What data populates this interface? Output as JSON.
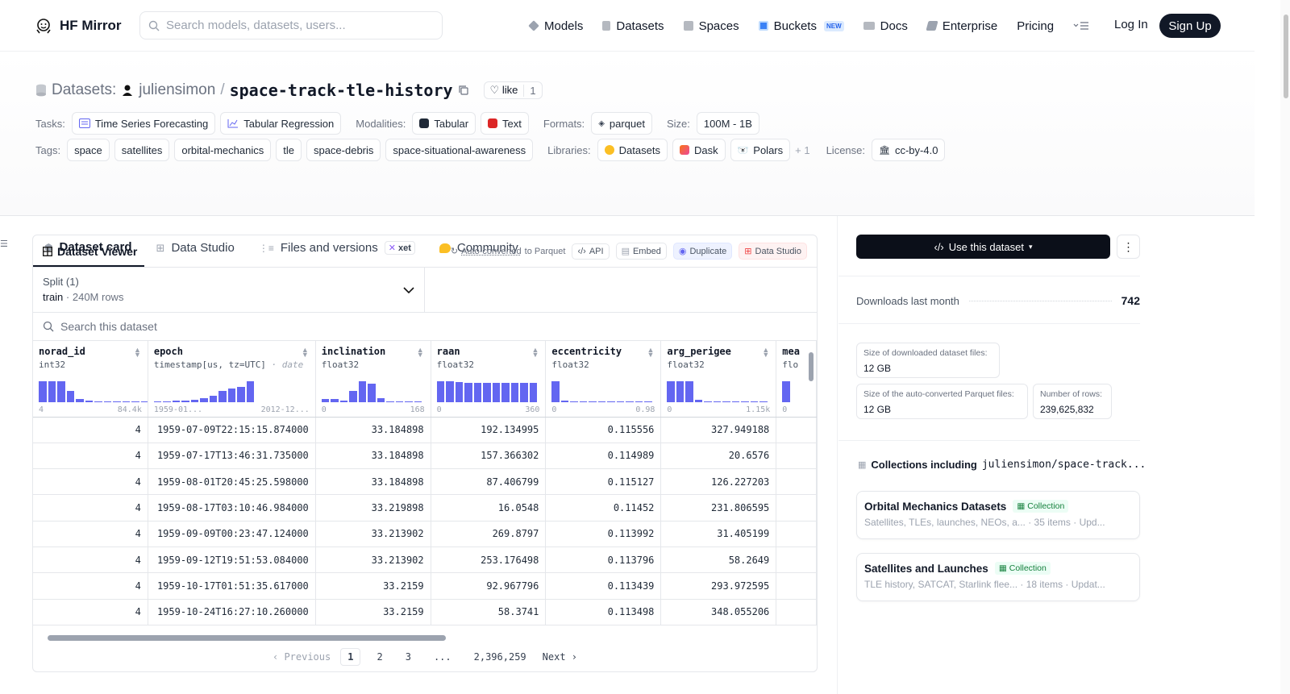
{
  "header": {
    "brand": "HF Mirror",
    "search_placeholder": "Search models, datasets, users...",
    "nav": [
      {
        "label": "Models",
        "icon": "cube-icon",
        "color": "#9ca3af"
      },
      {
        "label": "Datasets",
        "icon": "database-icon",
        "color": "#9ca3af"
      },
      {
        "label": "Spaces",
        "icon": "grid-icon",
        "color": "#9ca3af"
      },
      {
        "label": "Buckets",
        "icon": "bucket-icon",
        "color": "#3b82f6"
      },
      {
        "label": "Docs",
        "icon": "book-icon",
        "color": "#9ca3af"
      },
      {
        "label": "Enterprise",
        "icon": "enterprise-icon",
        "color": "#9ca3af"
      },
      {
        "label": "Pricing",
        "icon": "",
        "color": ""
      }
    ],
    "new_badge": "NEW",
    "login": "Log In",
    "signup": "Sign Up"
  },
  "dataset": {
    "label": "Datasets:",
    "owner": "juliensimon",
    "name": "space-track-tle-history",
    "like_label": "like",
    "like_count": "1"
  },
  "meta": {
    "tasks_label": "Tasks:",
    "tasks": [
      "Time Series Forecasting",
      "Tabular Regression"
    ],
    "modalities_label": "Modalities:",
    "modalities": [
      "Tabular",
      "Text"
    ],
    "formats_label": "Formats:",
    "formats": [
      "parquet"
    ],
    "size_label": "Size:",
    "size": "100M - 1B",
    "tags_label": "Tags:",
    "tags": [
      "space",
      "satellites",
      "orbital-mechanics",
      "tle",
      "space-debris",
      "space-situational-awareness"
    ],
    "libraries_label": "Libraries:",
    "libraries": [
      "Datasets",
      "Dask",
      "Polars"
    ],
    "libraries_more": "+ 1",
    "license_label": "License:",
    "license": "cc-by-4.0"
  },
  "tabs": [
    {
      "label": "Dataset card",
      "icon": "cube-icon"
    },
    {
      "label": "Data Studio",
      "icon": "table-icon"
    },
    {
      "label": "Files and versions",
      "icon": "files-icon"
    },
    {
      "label": "Community",
      "icon": "community-icon"
    }
  ],
  "xet_badge": "xet",
  "viewer": {
    "title": "Dataset Viewer",
    "auto_converted_link": "Auto-converted",
    "auto_converted_suffix": " to Parquet",
    "api": "API",
    "embed": "Embed",
    "duplicate": "Duplicate",
    "data_studio": "Data Studio",
    "split_label": "Split (1)",
    "split_value": "train",
    "split_rows": "240M rows",
    "search_placeholder": "Search this dataset",
    "columns": [
      {
        "name": "norad_id",
        "type": "int32",
        "type_note": "",
        "min": "4",
        "max": "84.4k",
        "hist": [
          0.85,
          0.85,
          0.85,
          0.45,
          0.12,
          0.06,
          0,
          0,
          0,
          0,
          0,
          0.03
        ]
      },
      {
        "name": "epoch",
        "type": "timestamp[us, tz=UTC]",
        "type_note": " · date",
        "min": "1959-01...",
        "max": "2012-12...",
        "hist": [
          0.03,
          0.03,
          0.05,
          0.06,
          0.1,
          0.18,
          0.28,
          0.45,
          0.55,
          0.62,
          0.85
        ]
      },
      {
        "name": "inclination",
        "type": "float32",
        "type_note": "",
        "min": "0",
        "max": "168",
        "hist": [
          0.12,
          0.12,
          0.08,
          0.45,
          0.85,
          0.75,
          0.15,
          0.04,
          0.03,
          0.03,
          0.03
        ]
      },
      {
        "name": "raan",
        "type": "float32",
        "type_note": "",
        "min": "0",
        "max": "360",
        "hist": [
          0.85,
          0.85,
          0.82,
          0.8,
          0.8,
          0.8,
          0.8,
          0.8,
          0.8,
          0.8,
          0.8
        ]
      },
      {
        "name": "eccentricity",
        "type": "float32",
        "type_note": "",
        "min": "0",
        "max": "0.98",
        "hist": [
          0.85,
          0.06,
          0.03,
          0.03,
          0.03,
          0.03,
          0.03,
          0.03,
          0.03,
          0.03,
          0.03
        ]
      },
      {
        "name": "arg_perigee",
        "type": "float32",
        "type_note": "",
        "min": "0",
        "max": "1.15k",
        "hist": [
          0.85,
          0.85,
          0.85,
          0.1,
          0,
          0,
          0,
          0,
          0,
          0,
          0.03
        ]
      },
      {
        "name": "mea",
        "type": "flo",
        "type_note": "",
        "min": "0",
        "max": "",
        "hist": [
          0.85
        ]
      }
    ],
    "rows": [
      [
        "4",
        "1959-07-09T22:15:15.874000",
        "33.184898",
        "192.134995",
        "0.115556",
        "327.949188"
      ],
      [
        "4",
        "1959-07-17T13:46:31.735000",
        "33.184898",
        "157.366302",
        "0.114989",
        "20.6576"
      ],
      [
        "4",
        "1959-08-01T20:45:25.598000",
        "33.184898",
        "87.406799",
        "0.115127",
        "126.227203"
      ],
      [
        "4",
        "1959-08-17T03:10:46.984000",
        "33.219898",
        "16.0548",
        "0.11452",
        "231.806595"
      ],
      [
        "4",
        "1959-09-09T00:23:47.124000",
        "33.213902",
        "269.8797",
        "0.113992",
        "31.405199"
      ],
      [
        "4",
        "1959-09-12T19:51:53.084000",
        "33.213902",
        "253.176498",
        "0.113796",
        "58.2649"
      ],
      [
        "4",
        "1959-10-17T01:51:35.617000",
        "33.2159",
        "92.967796",
        "0.113439",
        "293.972595"
      ],
      [
        "4",
        "1959-10-24T16:27:10.260000",
        "33.2159",
        "58.3741",
        "0.113498",
        "348.055206"
      ]
    ],
    "pager": {
      "prev": "Previous",
      "pages": [
        "1",
        "2",
        "3",
        "...",
        "2,396,259"
      ],
      "next": "Next"
    }
  },
  "sidebar": {
    "use_button": "Use this dataset",
    "more": "⋮",
    "downloads_label": "Downloads last month",
    "downloads_value": "742",
    "downloaded_size_label": "Size of downloaded dataset files:",
    "downloaded_size": "12 GB",
    "parquet_size_label": "Size of the auto-converted Parquet files:",
    "parquet_size": "12 GB",
    "rows_label": "Number of rows:",
    "rows_value": "239,625,832",
    "collections_title": "Collections including",
    "collections_repo": "juliensimon/space-track...",
    "collections": [
      {
        "name": "Orbital Mechanics Datasets",
        "badge": "Collection",
        "desc": "Satellites, TLEs, launches, NEOs, a...",
        "items": "35 items",
        "updated": "Upd..."
      },
      {
        "name": "Satellites and Launches",
        "badge": "Collection",
        "desc": "TLE history, SATCAT, Starlink flee...",
        "items": "18 items",
        "updated": "Updat..."
      }
    ]
  }
}
